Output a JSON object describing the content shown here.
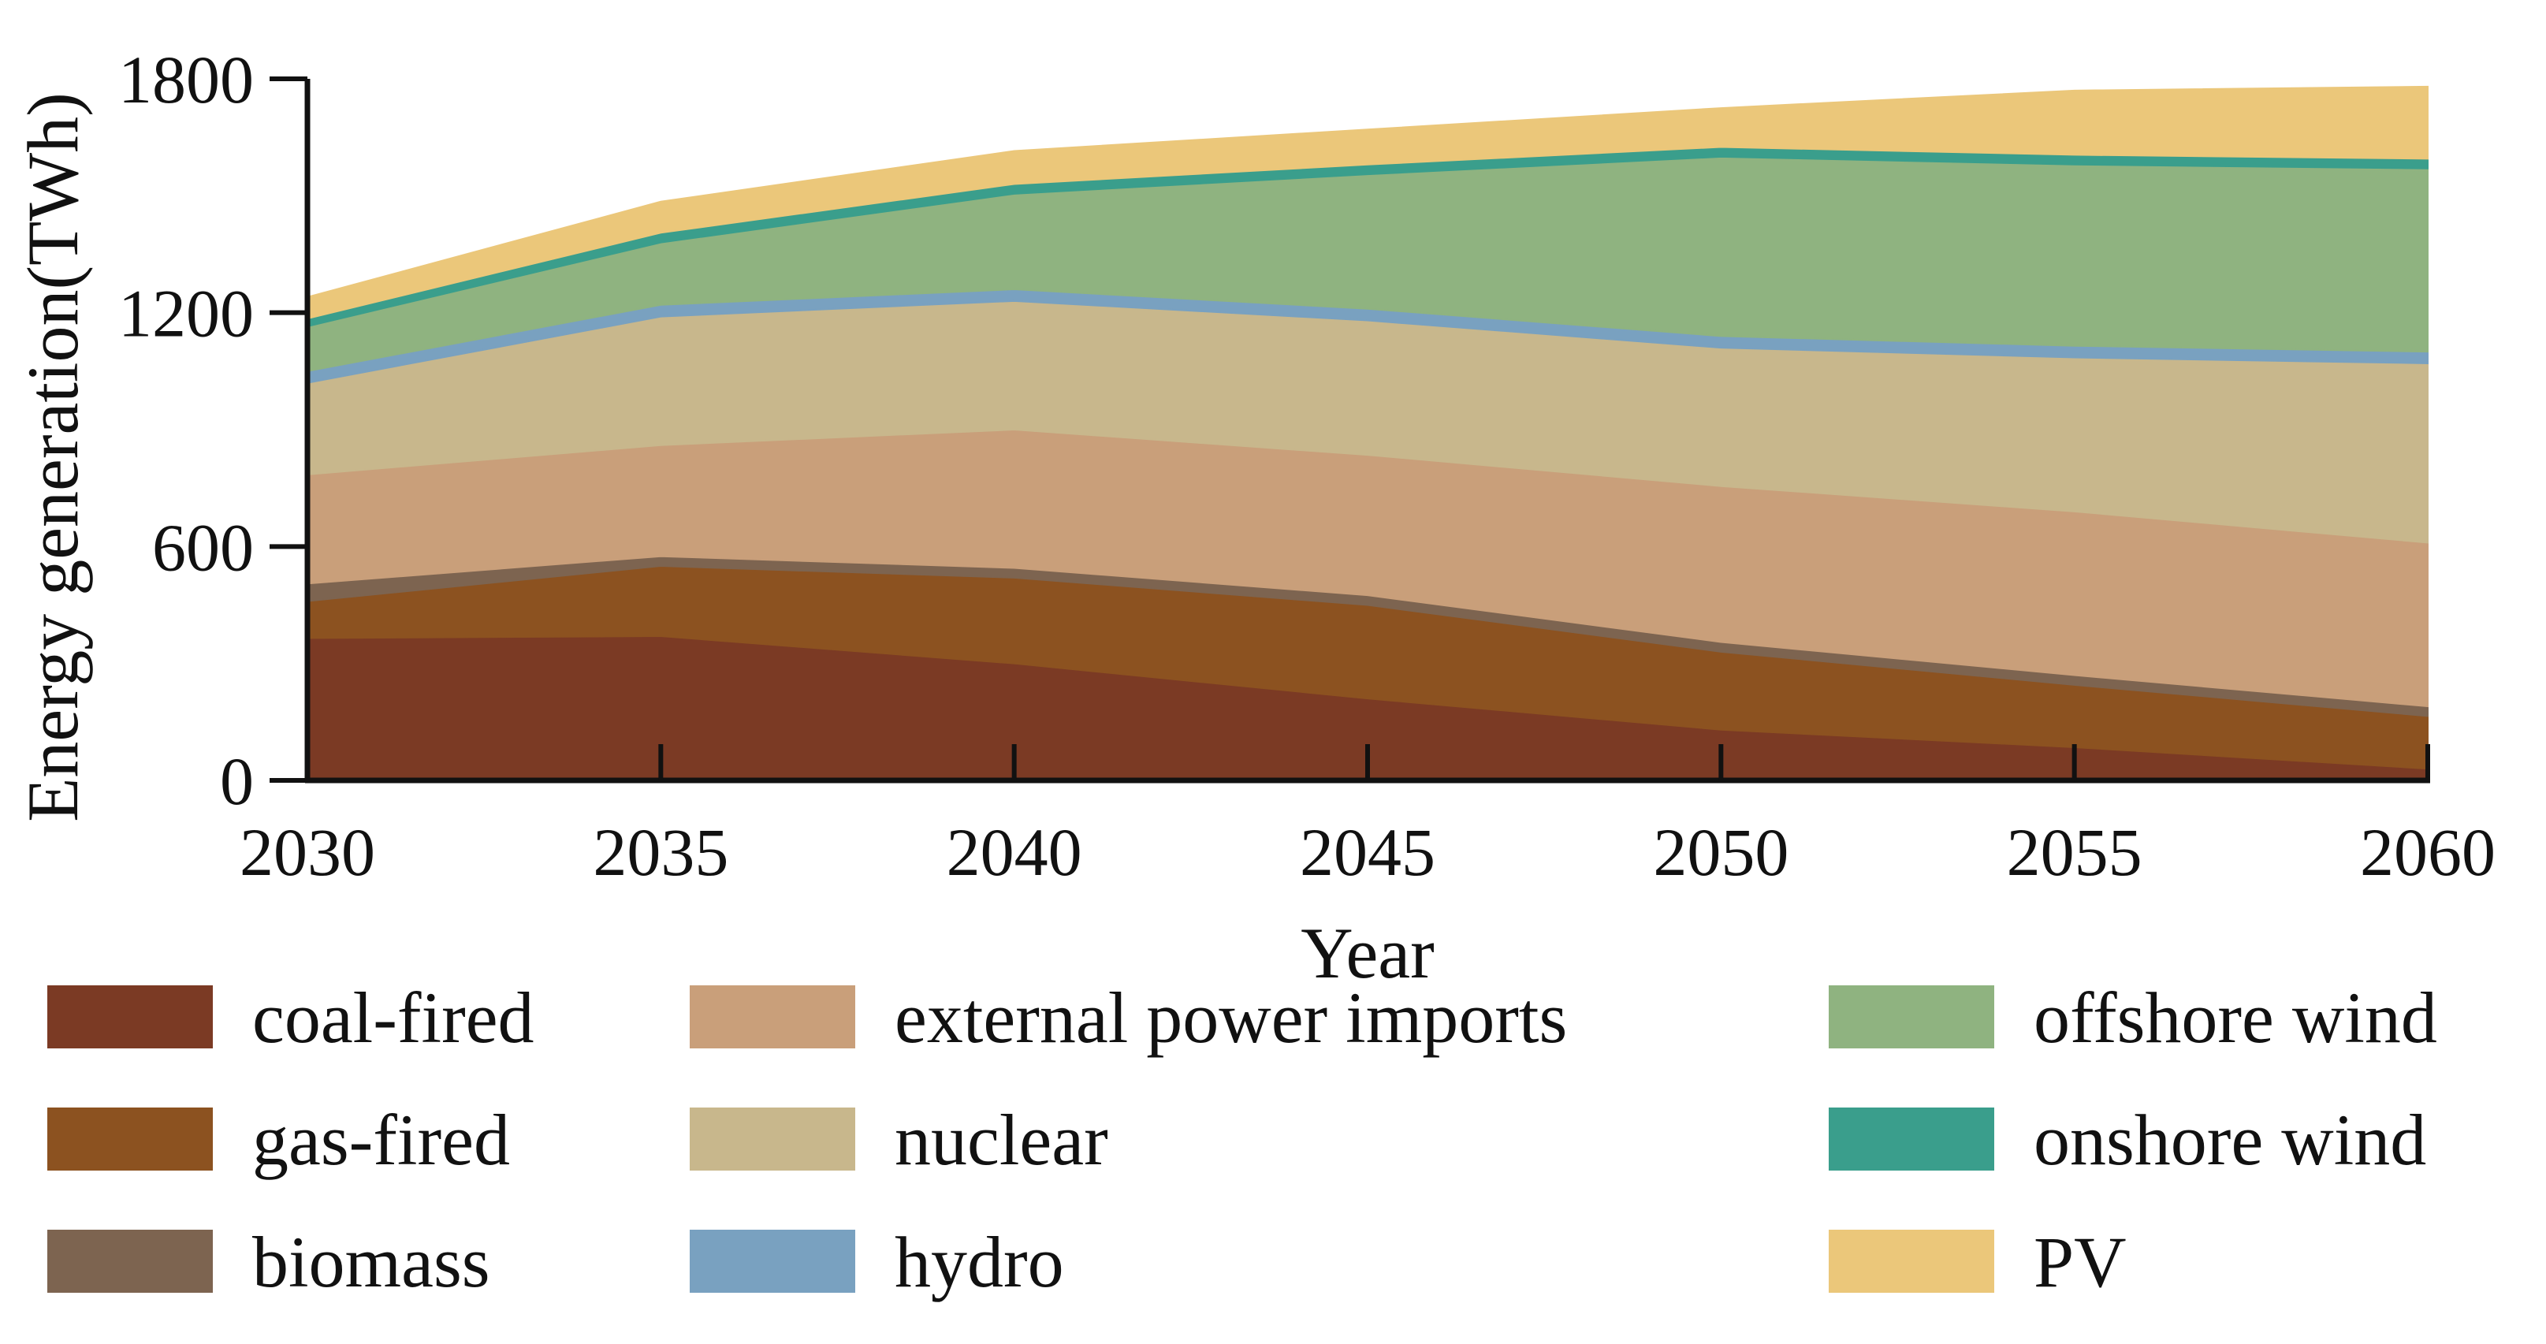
{
  "chart_data": {
    "type": "area",
    "stacked": true,
    "title": "",
    "xlabel": "Year",
    "ylabel": "Energy generation(TWh)",
    "x": [
      2030,
      2035,
      2040,
      2045,
      2050,
      2055,
      2060
    ],
    "xlim": [
      2030,
      2060
    ],
    "ylim": [
      0,
      1800
    ],
    "yticks": [
      0,
      600,
      1200,
      1800
    ],
    "grid": false,
    "legend_position": "bottom",
    "series": [
      {
        "name": "coal-fired",
        "color": "#7b3a24",
        "values": [
          365,
          370,
          300,
          210,
          130,
          85,
          30
        ]
      },
      {
        "name": "gas-fired",
        "color": "#8c5220",
        "values": [
          95,
          180,
          220,
          240,
          200,
          160,
          135
        ]
      },
      {
        "name": "biomass",
        "color": "#7d6450",
        "values": [
          45,
          25,
          25,
          25,
          25,
          25,
          25
        ]
      },
      {
        "name": "external power imports",
        "color": "#c99f7a",
        "values": [
          280,
          285,
          355,
          360,
          400,
          420,
          420
        ]
      },
      {
        "name": "nuclear",
        "color": "#c8b78c",
        "values": [
          235,
          330,
          330,
          345,
          355,
          395,
          460
        ]
      },
      {
        "name": "hydro",
        "color": "#79a1c0",
        "values": [
          30,
          30,
          30,
          30,
          30,
          30,
          30
        ]
      },
      {
        "name": "offshore wind",
        "color": "#8fb380",
        "values": [
          115,
          160,
          245,
          345,
          460,
          465,
          470
        ]
      },
      {
        "name": "onshore wind",
        "color": "#3a9e8c",
        "values": [
          20,
          25,
          25,
          25,
          25,
          25,
          25
        ]
      },
      {
        "name": "PV",
        "color": "#ebc77a",
        "values": [
          55,
          80,
          85,
          90,
          100,
          165,
          185
        ]
      }
    ]
  }
}
